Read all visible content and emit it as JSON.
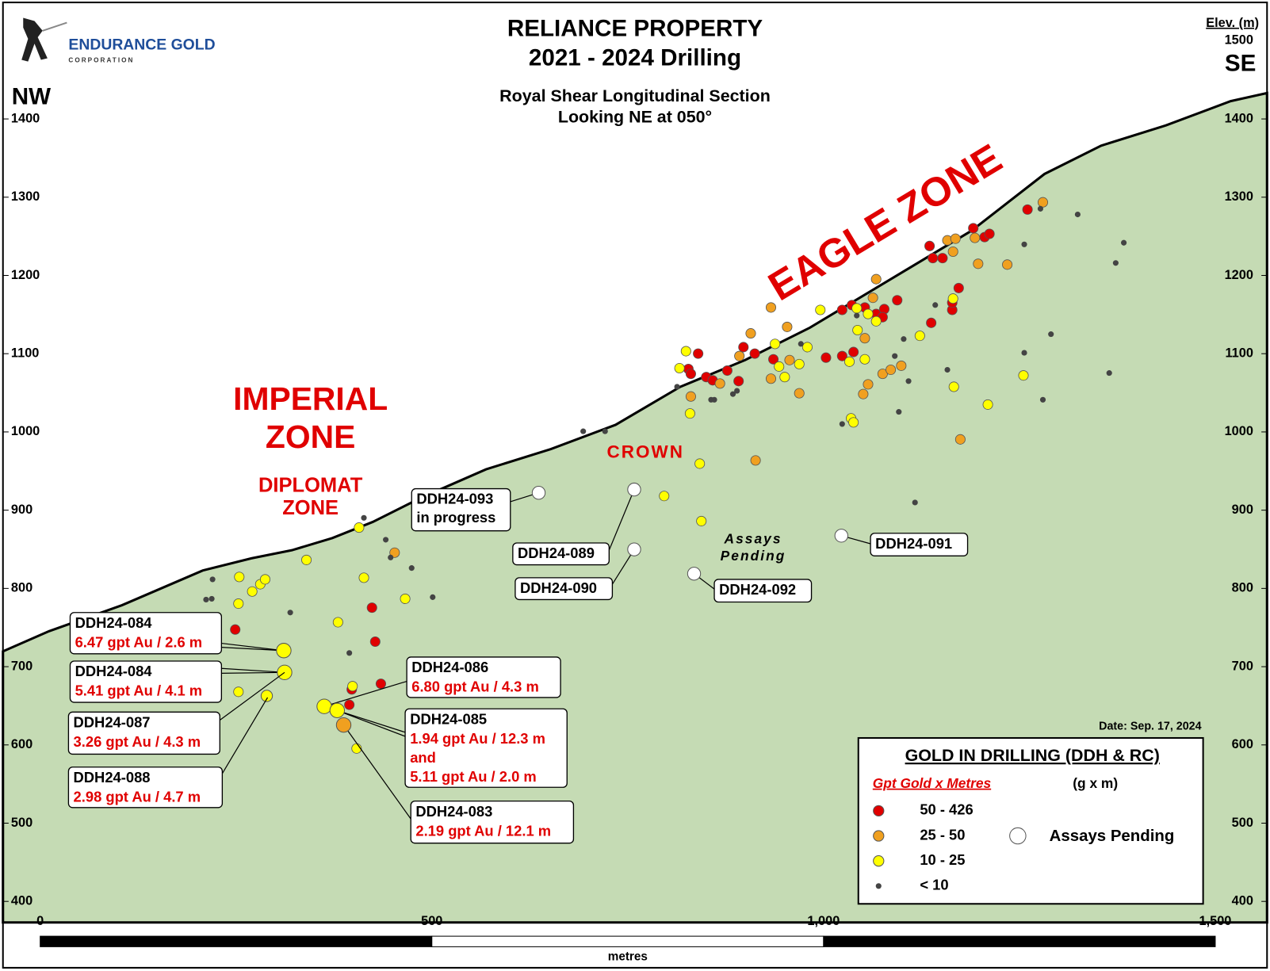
{
  "logo": {
    "name": "ENDURANCE GOLD",
    "sub": "CORPORATION"
  },
  "title": [
    "RELIANCE PROPERTY",
    "2021 - 2024 Drilling"
  ],
  "subtitle": [
    "Royal Shear Longitudinal Section",
    "Looking NE at 050°"
  ],
  "elevation_label": "Elev. (m)",
  "top_elevation": "1500",
  "left_direction": "NW",
  "right_direction": "SE",
  "elevation_ticks": [
    "1400",
    "1300",
    "1200",
    "1100",
    "1000",
    "900",
    "800",
    "700",
    "600",
    "500",
    "400"
  ],
  "zones": {
    "eagle": "EAGLE  ZONE",
    "imperial": [
      "IMPERIAL",
      "ZONE"
    ],
    "diplomat": [
      "DIPLOMAT",
      "ZONE"
    ],
    "crown": "CROWN",
    "assays_pending": [
      "Assays",
      "Pending"
    ]
  },
  "callouts": [
    {
      "hole": "DDH24-084",
      "result": [
        "6.47 gpt Au / 2.6 m"
      ]
    },
    {
      "hole": "DDH24-084",
      "result": [
        "5.41 gpt Au / 4.1 m"
      ]
    },
    {
      "hole": "DDH24-087",
      "result": [
        "3.26 gpt Au / 4.3 m"
      ]
    },
    {
      "hole": "DDH24-088",
      "result": [
        "2.98 gpt Au / 4.7 m"
      ]
    },
    {
      "hole": "DDH24-086",
      "result": [
        "6.80 gpt Au / 4.3 m"
      ]
    },
    {
      "hole": "DDH24-085",
      "result": [
        "1.94 gpt Au / 12.3 m",
        "and",
        "5.11 gpt Au / 2.0 m"
      ]
    },
    {
      "hole": "DDH24-083",
      "result": [
        "2.19 gpt Au / 12.1 m"
      ]
    }
  ],
  "pending_holes": [
    [
      "DDH24-093",
      "in progress"
    ],
    [
      "DDH24-089"
    ],
    [
      "DDH24-090"
    ],
    [
      "DDH24-092"
    ],
    [
      "DDH24-091"
    ]
  ],
  "date": "Date:  Sep. 17, 2024",
  "legend": {
    "title": "GOLD IN DRILLING (DDH & RC)",
    "subtitle": "Gpt Gold x Metres",
    "unit": "(g x m)",
    "items": [
      {
        "label": "50 - 426",
        "color": "#e00000"
      },
      {
        "label": "25 - 50",
        "color": "#f0a020"
      },
      {
        "label": "10 - 25",
        "color": "#ffff00"
      },
      {
        "label": "< 10",
        "color": "#444444"
      }
    ],
    "pending": "Assays Pending"
  },
  "scale_bar": {
    "ticks": [
      "0",
      "500",
      "1,000",
      "1,500"
    ],
    "unit": "metres"
  }
}
